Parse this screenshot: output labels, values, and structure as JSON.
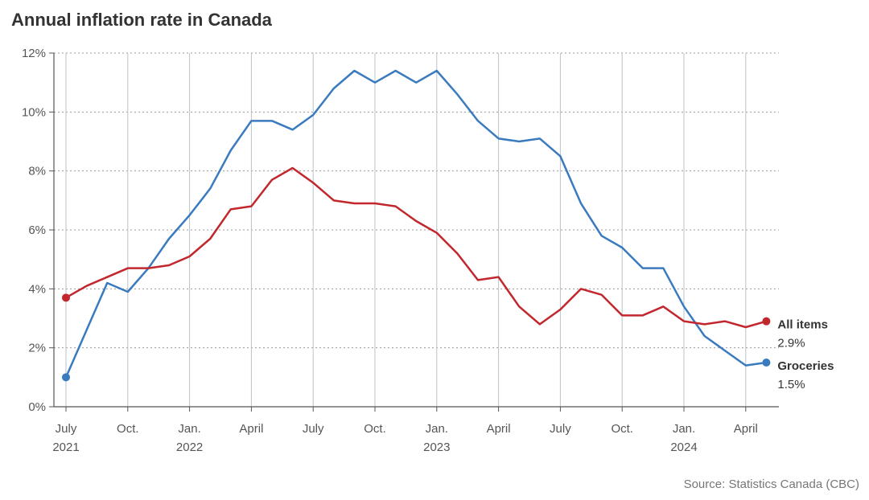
{
  "chart_data": {
    "type": "line",
    "title": "Annual inflation rate in Canada",
    "source": "Source: Statistics Canada (CBC)",
    "ylim": [
      0,
      12
    ],
    "yticks": [
      "0%",
      "2%",
      "4%",
      "6%",
      "8%",
      "10%",
      "12%"
    ],
    "x_tick_labels": [
      {
        "month_index": 0,
        "label": "July",
        "year": "2021"
      },
      {
        "month_index": 3,
        "label": "Oct.",
        "year": ""
      },
      {
        "month_index": 6,
        "label": "Jan.",
        "year": "2022"
      },
      {
        "month_index": 9,
        "label": "April",
        "year": ""
      },
      {
        "month_index": 12,
        "label": "July",
        "year": ""
      },
      {
        "month_index": 15,
        "label": "Oct.",
        "year": ""
      },
      {
        "month_index": 18,
        "label": "Jan.",
        "year": "2023"
      },
      {
        "month_index": 21,
        "label": "April",
        "year": ""
      },
      {
        "month_index": 24,
        "label": "July",
        "year": ""
      },
      {
        "month_index": 27,
        "label": "Oct.",
        "year": ""
      },
      {
        "month_index": 30,
        "label": "Jan.",
        "year": "2024"
      },
      {
        "month_index": 33,
        "label": "April",
        "year": ""
      }
    ],
    "x": [
      "2021-07",
      "2021-08",
      "2021-09",
      "2021-10",
      "2021-11",
      "2021-12",
      "2022-01",
      "2022-02",
      "2022-03",
      "2022-04",
      "2022-05",
      "2022-06",
      "2022-07",
      "2022-08",
      "2022-09",
      "2022-10",
      "2022-11",
      "2022-12",
      "2023-01",
      "2023-02",
      "2023-03",
      "2023-04",
      "2023-05",
      "2023-06",
      "2023-07",
      "2023-08",
      "2023-09",
      "2023-10",
      "2023-11",
      "2023-12",
      "2024-01",
      "2024-02",
      "2024-03",
      "2024-04",
      "2024-05"
    ],
    "series": [
      {
        "name": "Groceries",
        "end_value_label": "1.5%",
        "color": "#3a7bbf",
        "values": [
          1.0,
          2.6,
          4.2,
          3.9,
          4.7,
          5.7,
          6.5,
          7.4,
          8.7,
          9.7,
          9.7,
          9.4,
          9.9,
          10.8,
          11.4,
          11.0,
          11.4,
          11.0,
          11.4,
          10.6,
          9.7,
          9.1,
          9.0,
          9.1,
          8.5,
          6.9,
          5.8,
          5.4,
          4.7,
          4.7,
          3.4,
          2.4,
          1.9,
          1.4,
          1.5
        ]
      },
      {
        "name": "All items",
        "end_value_label": "2.9%",
        "color": "#c1272d",
        "values": [
          3.7,
          4.1,
          4.4,
          4.7,
          4.7,
          4.8,
          5.1,
          5.7,
          6.7,
          6.8,
          7.7,
          8.1,
          7.6,
          7.0,
          6.9,
          6.9,
          6.8,
          6.3,
          5.9,
          5.2,
          4.3,
          4.4,
          3.4,
          2.8,
          3.3,
          4.0,
          3.8,
          3.1,
          3.1,
          3.4,
          2.9,
          2.8,
          2.9,
          2.7,
          2.9
        ]
      }
    ],
    "grid": true,
    "legend": "end-of-line labels"
  }
}
